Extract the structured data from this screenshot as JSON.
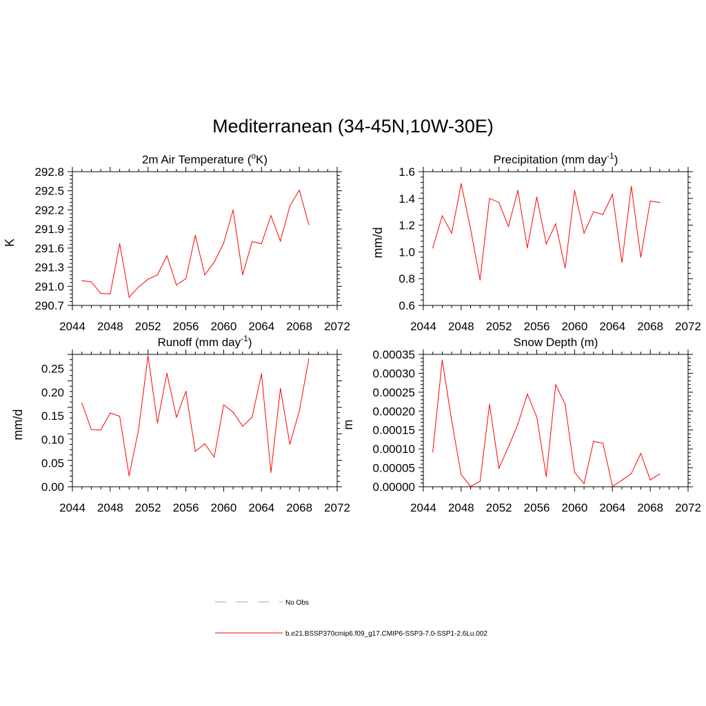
{
  "figure": {
    "title": "Mediterranean (34-45N,10W-30E)"
  },
  "legend": [
    {
      "label": "No Obs",
      "color": "#9b9bdd",
      "style": "dashed"
    },
    {
      "label": "b.e21.BSSP370cmip6.f09_g17.CMIP6-SSP3-7.0-SSP1-2.6Lu.002",
      "color": "#ff0000",
      "style": "solid"
    }
  ],
  "chart_data": [
    {
      "type": "line",
      "title": "2m Air Temperature (°K)",
      "title_parts": {
        "pre": "2m Air Temperature (",
        "sup": "o",
        "post": "K)"
      },
      "xlabel": "",
      "ylabel": "K",
      "xlim": [
        2044,
        2072
      ],
      "ylim": [
        290.7,
        292.8
      ],
      "xticks": [
        "2044",
        "2048",
        "2052",
        "2056",
        "2060",
        "2064",
        "2068",
        "2072"
      ],
      "yticks": [
        "290.7",
        "291.0",
        "291.3",
        "291.6",
        "291.9",
        "292.2",
        "292.5",
        "292.8"
      ],
      "series": [
        {
          "color": "#ff0000",
          "x": [
            2045,
            2046,
            2047,
            2048,
            2049,
            2050,
            2051,
            2052,
            2053,
            2054,
            2055,
            2056,
            2057,
            2058,
            2059,
            2060,
            2061,
            2062,
            2063,
            2064,
            2065,
            2066,
            2067,
            2068,
            2069
          ],
          "y": [
            291.09,
            291.07,
            290.89,
            290.88,
            291.67,
            290.83,
            290.99,
            291.11,
            291.18,
            291.48,
            291.02,
            291.12,
            291.8,
            291.18,
            291.38,
            291.68,
            292.2,
            291.18,
            291.7,
            291.67,
            292.11,
            291.71,
            292.26,
            292.51,
            291.97
          ]
        }
      ]
    },
    {
      "type": "line",
      "title": "Precipitation (mm day-1)",
      "title_parts": {
        "pre": "Precipitation (mm day",
        "sup": "-1",
        "post": ")"
      },
      "xlabel": "",
      "ylabel": "mm/d",
      "xlim": [
        2044,
        2072
      ],
      "ylim": [
        0.6,
        1.6
      ],
      "xticks": [
        "2044",
        "2048",
        "2052",
        "2056",
        "2060",
        "2064",
        "2068",
        "2072"
      ],
      "yticks": [
        "0.6",
        "0.8",
        "1.0",
        "1.2",
        "1.4",
        "1.6"
      ],
      "series": [
        {
          "color": "#ff0000",
          "x": [
            2045,
            2046,
            2047,
            2048,
            2049,
            2050,
            2051,
            2052,
            2053,
            2054,
            2055,
            2056,
            2057,
            2058,
            2059,
            2060,
            2061,
            2062,
            2063,
            2064,
            2065,
            2066,
            2067,
            2068,
            2069
          ],
          "y": [
            1.03,
            1.27,
            1.14,
            1.51,
            1.17,
            0.79,
            1.4,
            1.37,
            1.19,
            1.46,
            1.03,
            1.41,
            1.06,
            1.21,
            0.88,
            1.46,
            1.14,
            1.3,
            1.28,
            1.43,
            0.92,
            1.49,
            0.96,
            1.38,
            1.37
          ]
        }
      ]
    },
    {
      "type": "line",
      "title": "Runoff (mm day-1)",
      "title_parts": {
        "pre": "Runoff (mm day",
        "sup": "-1",
        "post": ")"
      },
      "xlabel": "",
      "ylabel": "mm/d",
      "xlim": [
        2044,
        2072
      ],
      "ylim": [
        0.0,
        0.28
      ],
      "xticks": [
        "2044",
        "2048",
        "2052",
        "2056",
        "2060",
        "2064",
        "2068",
        "2072"
      ],
      "yticks": [
        "0.00",
        "0.05",
        "0.10",
        "0.15",
        "0.20",
        "0.25"
      ],
      "series": [
        {
          "color": "#ff0000",
          "x": [
            2045,
            2046,
            2047,
            2048,
            2049,
            2050,
            2051,
            2052,
            2053,
            2054,
            2055,
            2056,
            2057,
            2058,
            2059,
            2060,
            2061,
            2062,
            2063,
            2064,
            2065,
            2066,
            2067,
            2068,
            2069
          ],
          "y": [
            0.177,
            0.121,
            0.12,
            0.156,
            0.149,
            0.023,
            0.121,
            0.277,
            0.135,
            0.24,
            0.147,
            0.202,
            0.075,
            0.091,
            0.063,
            0.173,
            0.158,
            0.128,
            0.147,
            0.239,
            0.03,
            0.208,
            0.09,
            0.16,
            0.27
          ]
        }
      ]
    },
    {
      "type": "line",
      "title": "Snow Depth (m)",
      "title_parts": {
        "pre": "Snow Depth (m)",
        "sup": "",
        "post": ""
      },
      "xlabel": "",
      "ylabel": "m",
      "xlim": [
        2044,
        2072
      ],
      "ylim": [
        0.0,
        0.00035
      ],
      "xticks": [
        "2044",
        "2048",
        "2052",
        "2056",
        "2060",
        "2064",
        "2068",
        "2072"
      ],
      "yticks": [
        "0.00000",
        "0.00005",
        "0.00010",
        "0.00015",
        "0.00020",
        "0.00025",
        "0.00030",
        "0.00035"
      ],
      "series": [
        {
          "color": "#ff0000",
          "x": [
            2045,
            2046,
            2047,
            2048,
            2049,
            2050,
            2051,
            2052,
            2053,
            2054,
            2055,
            2056,
            2057,
            2058,
            2059,
            2060,
            2061,
            2062,
            2063,
            2064,
            2065,
            2066,
            2067,
            2068,
            2069
          ],
          "y": [
            9.2e-05,
            0.000335,
            0.000175,
            3.2e-05,
            1e-06,
            1.4e-05,
            0.000218,
            4.9e-05,
            0.000105,
            0.000165,
            0.000245,
            0.000184,
            2.7e-05,
            0.00027,
            0.000218,
            3.8e-05,
            8e-06,
            0.00012,
            0.000115,
            1e-06,
            1.7e-05,
            3.5e-05,
            8.8e-05,
            1.8e-05,
            3.4e-05
          ]
        }
      ]
    }
  ]
}
